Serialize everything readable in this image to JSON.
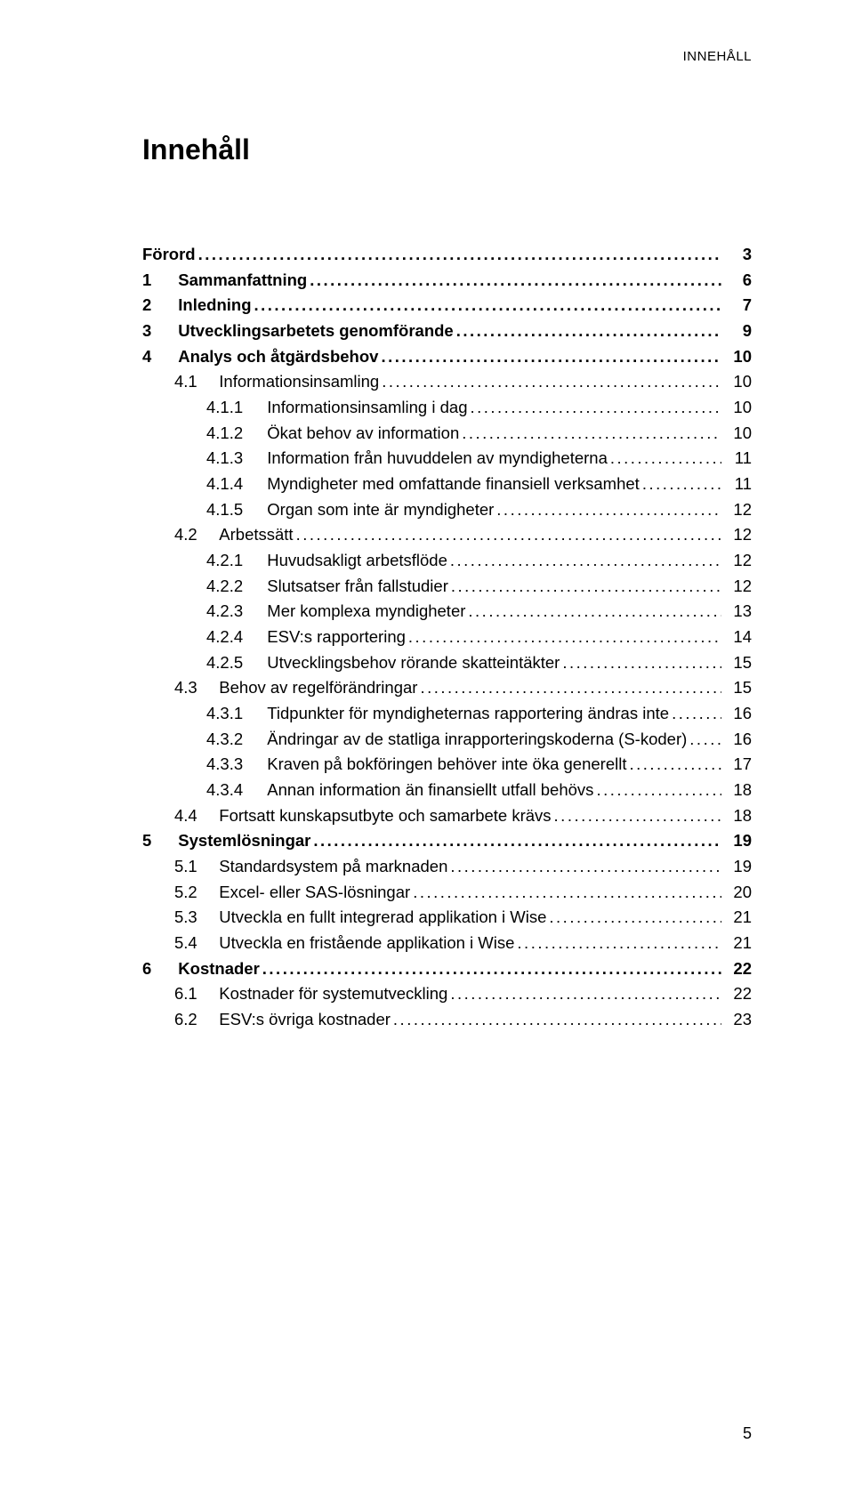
{
  "running_head": "INNEHÅLL",
  "title": "Innehåll",
  "page_number": "5",
  "colors": {
    "text": "#000000",
    "background": "#ffffff"
  },
  "typography": {
    "body_font": "Arial, Helvetica, sans-serif",
    "title_size_pt": 24,
    "body_size_pt": 14
  },
  "toc": [
    {
      "level": 1,
      "num": "",
      "label": "Förord",
      "page": "3"
    },
    {
      "level": 1,
      "num": "1",
      "label": "Sammanfattning",
      "page": "6"
    },
    {
      "level": 1,
      "num": "2",
      "label": "Inledning",
      "page": "7"
    },
    {
      "level": 1,
      "num": "3",
      "label": "Utvecklingsarbetets genomförande",
      "page": "9"
    },
    {
      "level": 1,
      "num": "4",
      "label": "Analys och åtgärdsbehov",
      "page": "10"
    },
    {
      "level": 2,
      "num": "4.1",
      "label": "Informationsinsamling",
      "page": "10"
    },
    {
      "level": 3,
      "num": "4.1.1",
      "label": "Informationsinsamling i dag",
      "page": "10"
    },
    {
      "level": 3,
      "num": "4.1.2",
      "label": "Ökat behov av information",
      "page": "10"
    },
    {
      "level": 3,
      "num": "4.1.3",
      "label": "Information från huvuddelen av myndigheterna",
      "page": "11"
    },
    {
      "level": 3,
      "num": "4.1.4",
      "label": "Myndigheter med omfattande finansiell verksamhet",
      "page": "11"
    },
    {
      "level": 3,
      "num": "4.1.5",
      "label": "Organ som inte är myndigheter",
      "page": "12"
    },
    {
      "level": 2,
      "num": "4.2",
      "label": "Arbetssätt",
      "page": "12"
    },
    {
      "level": 3,
      "num": "4.2.1",
      "label": "Huvudsakligt arbetsflöde",
      "page": "12"
    },
    {
      "level": 3,
      "num": "4.2.2",
      "label": "Slutsatser från fallstudier",
      "page": "12"
    },
    {
      "level": 3,
      "num": "4.2.3",
      "label": "Mer komplexa myndigheter",
      "page": "13"
    },
    {
      "level": 3,
      "num": "4.2.4",
      "label": "ESV:s rapportering",
      "page": "14"
    },
    {
      "level": 3,
      "num": "4.2.5",
      "label": "Utvecklingsbehov rörande skatteintäkter",
      "page": "15"
    },
    {
      "level": 2,
      "num": "4.3",
      "label": "Behov av regelförändringar",
      "page": "15"
    },
    {
      "level": 3,
      "num": "4.3.1",
      "label": "Tidpunkter för myndigheternas rapportering ändras inte",
      "page": "16"
    },
    {
      "level": 3,
      "num": "4.3.2",
      "label": "Ändringar av de statliga inrapporteringskoderna (S-koder)",
      "page": "16"
    },
    {
      "level": 3,
      "num": "4.3.3",
      "label": "Kraven på bokföringen behöver inte öka generellt",
      "page": "17"
    },
    {
      "level": 3,
      "num": "4.3.4",
      "label": "Annan information än finansiellt utfall behövs",
      "page": "18"
    },
    {
      "level": 2,
      "num": "4.4",
      "label": "Fortsatt kunskapsutbyte och samarbete krävs",
      "page": "18"
    },
    {
      "level": 1,
      "num": "5",
      "label": "Systemlösningar",
      "page": "19"
    },
    {
      "level": 2,
      "num": "5.1",
      "label": "Standardsystem på marknaden",
      "page": "19"
    },
    {
      "level": 2,
      "num": "5.2",
      "label": "Excel- eller SAS-lösningar",
      "page": "20"
    },
    {
      "level": 2,
      "num": "5.3",
      "label": "Utveckla en fullt integrerad applikation i Wise",
      "page": "21"
    },
    {
      "level": 2,
      "num": "5.4",
      "label": "Utveckla en fristående applikation i Wise",
      "page": "21"
    },
    {
      "level": 1,
      "num": "6",
      "label": "Kostnader",
      "page": "22"
    },
    {
      "level": 2,
      "num": "6.1",
      "label": "Kostnader för systemutveckling",
      "page": "22"
    },
    {
      "level": 2,
      "num": "6.2",
      "label": "ESV:s övriga kostnader",
      "page": "23"
    }
  ]
}
